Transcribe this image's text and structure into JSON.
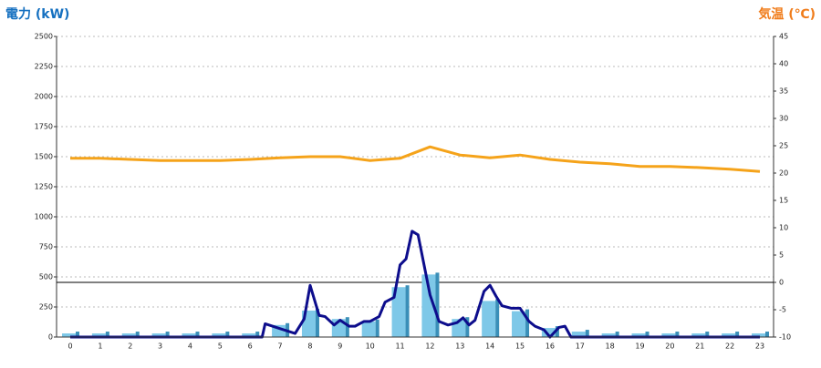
{
  "chart_data": {
    "type": "combo",
    "y_label": "電力 (kW)",
    "y2_label": "気温 (℃)",
    "categories": [
      "0",
      "1",
      "2",
      "3",
      "4",
      "5",
      "6",
      "7",
      "8",
      "9",
      "10",
      "11",
      "12",
      "13",
      "14",
      "15",
      "16",
      "17",
      "18",
      "19",
      "20",
      "21",
      "22",
      "23"
    ],
    "ylim": [
      0,
      2500
    ],
    "yticks": [
      0,
      250,
      500,
      750,
      1000,
      1250,
      1500,
      1750,
      2000,
      2250,
      2500
    ],
    "y2lim": [
      -10,
      45
    ],
    "y2ticks": [
      -10,
      -5,
      0,
      5,
      10,
      15,
      20,
      25,
      30,
      35,
      40,
      45
    ],
    "grid": true,
    "series": [
      {
        "type": "bar",
        "color": "#7ec8e8",
        "values": [
          30,
          30,
          30,
          30,
          30,
          30,
          30,
          100,
          220,
          150,
          130,
          415,
          520,
          150,
          300,
          215,
          75,
          45,
          30,
          30,
          30,
          30,
          30,
          30
        ]
      },
      {
        "type": "line",
        "color": "#0d0d8c",
        "x": [
          0,
          6.4,
          6.5,
          7,
          7.5,
          7.8,
          8,
          8.3,
          8.5,
          8.8,
          9,
          9.3,
          9.5,
          9.8,
          10,
          10.3,
          10.5,
          10.8,
          11,
          11.2,
          11.4,
          11.6,
          11.8,
          12,
          12.3,
          12.6,
          12.9,
          13.1,
          13.3,
          13.5,
          13.8,
          14,
          14.2,
          14.4,
          14.7,
          15,
          15.3,
          15.5,
          15.8,
          16,
          16.3,
          16.5,
          16.7,
          17,
          23
        ],
        "values": [
          0,
          0,
          110,
          70,
          30,
          150,
          430,
          180,
          170,
          100,
          140,
          90,
          90,
          130,
          130,
          170,
          290,
          330,
          600,
          650,
          880,
          850,
          600,
          350,
          130,
          100,
          120,
          160,
          100,
          140,
          380,
          430,
          340,
          260,
          240,
          240,
          130,
          90,
          60,
          0,
          80,
          90,
          0,
          0,
          0
        ]
      },
      {
        "type": "line",
        "axis": "y2",
        "color": "#f5a31a",
        "values": [
          22.7,
          22.7,
          22.5,
          22.3,
          22.3,
          22.3,
          22.5,
          22.8,
          23,
          23,
          22.3,
          22.7,
          24.8,
          23.3,
          22.8,
          23.3,
          22.5,
          22,
          21.7,
          21.2,
          21.2,
          21,
          20.7,
          20.3
        ]
      }
    ]
  }
}
